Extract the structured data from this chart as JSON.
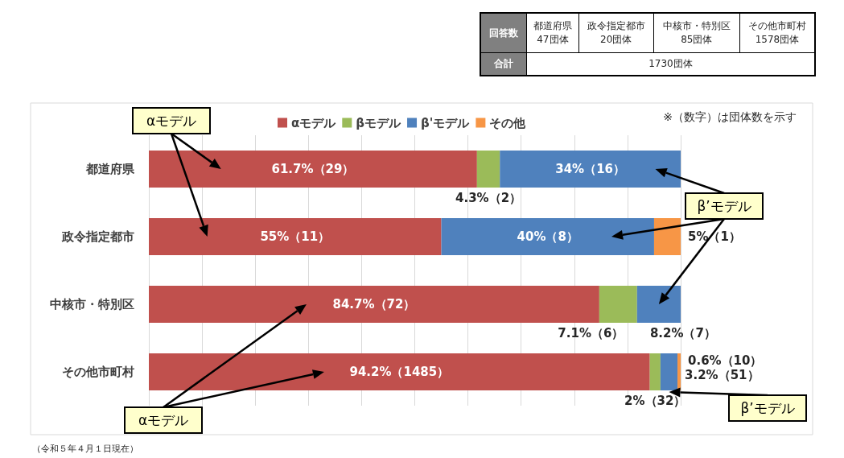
{
  "chart_data": {
    "type": "bar",
    "orientation": "horizontal",
    "stacked": true,
    "categories": [
      "都道府県",
      "政令指定都市",
      "中核市・特別区",
      "その他市町村"
    ],
    "series": [
      {
        "name": "αモデル",
        "color": "#c0504d",
        "values": [
          61.7,
          55,
          84.7,
          94.2
        ],
        "value_labels": [
          "61.7%（29）",
          "55%（11）",
          "84.7%（72）",
          "94.2%（1485）"
        ]
      },
      {
        "name": "βモデル",
        "color": "#9bbb59",
        "values": [
          4.3,
          null,
          7.1,
          2
        ],
        "value_labels": [
          "4.3%（2）",
          null,
          "7.1%（6）",
          "2%（32）"
        ]
      },
      {
        "name": "β'モデル",
        "color": "#4f81bd",
        "values": [
          34,
          40,
          8.2,
          3.2
        ],
        "value_labels": [
          "34%（16）",
          "40%（8）",
          "8.2%（7）",
          "3.2%（51）"
        ]
      },
      {
        "name": "その他",
        "color": "#f79646",
        "values": [
          null,
          5,
          null,
          0.6
        ],
        "value_labels": [
          null,
          "5%（1）",
          null,
          "0.6%（10）"
        ]
      }
    ],
    "xlim": [
      0,
      100
    ],
    "xticks": [
      0,
      10,
      20,
      30,
      40,
      50,
      60,
      70,
      80,
      90,
      100
    ],
    "grid": "x",
    "tick_labels": "y",
    "legend": "top",
    "annotations": [
      "回答数",
      "都道府県\n47団体",
      "政令指定都市\n20団体",
      "中核市・特別区\n85団体",
      "その他市町村\n1578団体",
      "合計",
      "1730団体",
      "※（数字）は団体数を示す",
      "（令和５年４月１日現在）",
      "αモデル",
      "αモデル",
      "β’モデル",
      "β’モデル"
    ]
  }
}
